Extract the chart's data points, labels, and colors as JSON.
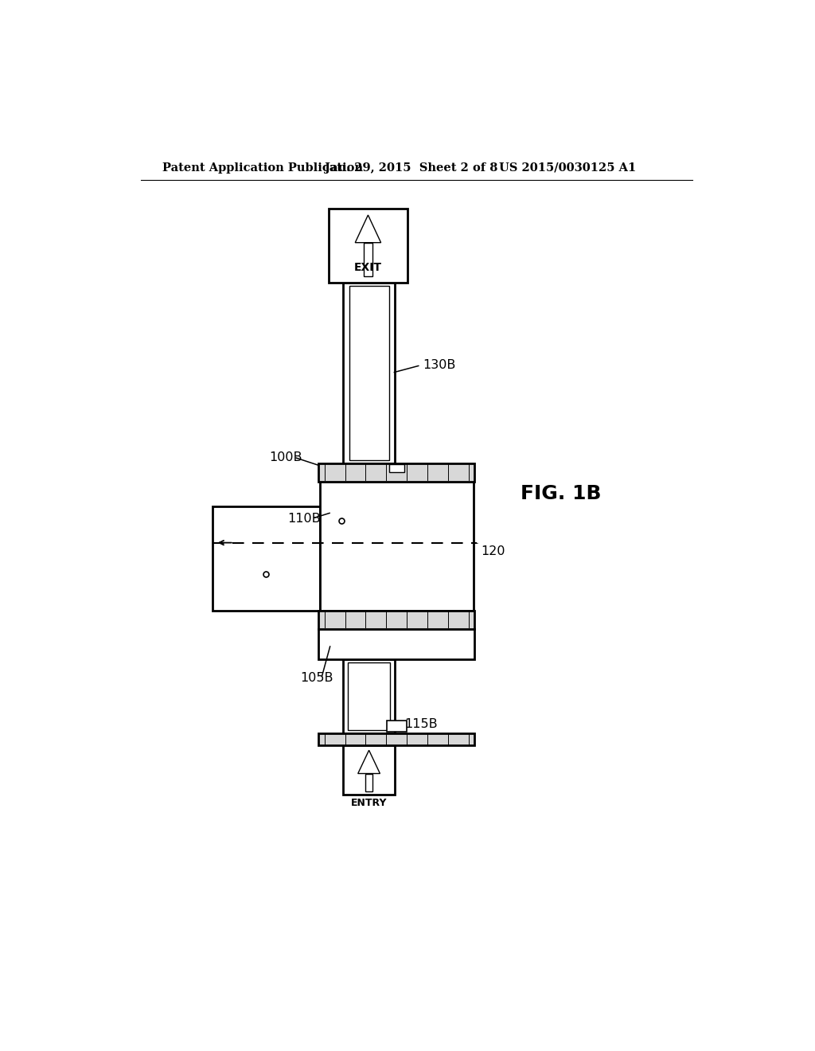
{
  "bg_color": "#ffffff",
  "line_color": "#000000",
  "header_left": "Patent Application Publication",
  "header_mid": "Jan. 29, 2015  Sheet 2 of 8",
  "header_right": "US 2015/0030125 A1",
  "fig_label": "FIG. 1B",
  "label_100B": "100B",
  "label_110B": "110B",
  "label_115B": "115B",
  "label_105B": "105B",
  "label_120": "120",
  "label_130B": "130B",
  "exit_text": "EXIT",
  "entry_text": "ENTRY",
  "lw_thick": 2.0,
  "lw_thin": 1.0,
  "lw_header": 0.8,
  "header_fontsize": 10.5,
  "label_fontsize": 11.5,
  "figlabel_fontsize": 18
}
